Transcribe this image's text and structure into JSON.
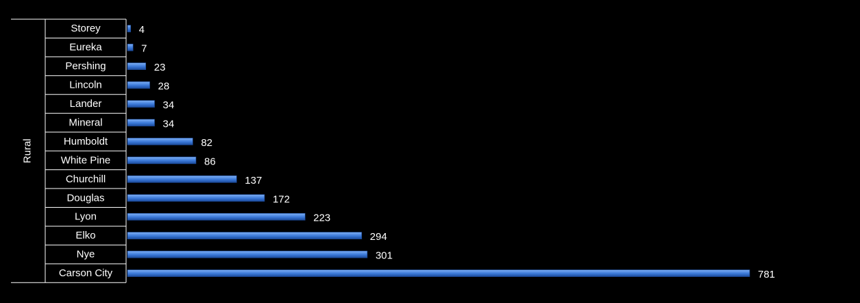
{
  "chart_data": {
    "type": "bar",
    "orientation": "horizontal",
    "group_label": "Rural",
    "categories": [
      "Storey",
      "Eureka",
      "Pershing",
      "Lincoln",
      "Lander",
      "Mineral",
      "Humboldt",
      "White Pine",
      "Churchill",
      "Douglas",
      "Lyon",
      "Elko",
      "Nye",
      "Carson City"
    ],
    "values": [
      4,
      7,
      23,
      28,
      34,
      34,
      82,
      86,
      137,
      172,
      223,
      294,
      301,
      781
    ],
    "data_labels": [
      "4",
      "7",
      "23",
      "28",
      "34",
      "34",
      "82",
      "86",
      "137",
      "172",
      "223",
      "294",
      "301",
      "781"
    ],
    "xlim": [
      0,
      781
    ],
    "grid": false,
    "legend": "none"
  },
  "colors": {
    "background": "#000000",
    "bar": "#3a78d8",
    "bar_highlight": "#7fb0f5",
    "bar_shadow": "#1b4a9a",
    "text": "#ffffff",
    "axis_lines": "#ffffff"
  }
}
